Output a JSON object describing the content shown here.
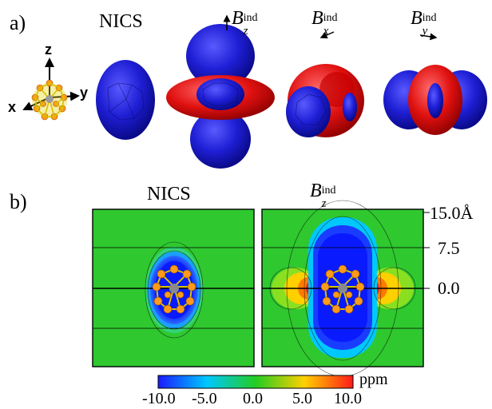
{
  "panel_a": {
    "label": "a)",
    "axes": {
      "z": "z",
      "x": "x",
      "y": "y"
    },
    "columns": [
      {
        "title": "NICS"
      },
      {
        "title_base": "B",
        "title_sub": "z",
        "title_sup": "ind",
        "arrow": "up"
      },
      {
        "title_base": "B",
        "title_sub": "x",
        "title_sup": "ind",
        "arrow": "down-left"
      },
      {
        "title_base": "B",
        "title_sub": "y",
        "title_sup": "ind",
        "arrow": "right"
      }
    ]
  },
  "panel_b": {
    "label": "b)",
    "maps": [
      {
        "title": "NICS"
      },
      {
        "title_base": "B",
        "title_sub": "z",
        "title_sup": "ind"
      }
    ],
    "distance_ticks": [
      "15.0Å",
      "7.5",
      "0.0"
    ]
  },
  "colorbar": {
    "unit": "ppm",
    "ticks": [
      "-10.0",
      "-5.0",
      "0.0",
      "5.0",
      "10.0"
    ],
    "range": [
      -10,
      10
    ],
    "colors": [
      "#1a1aff",
      "#00c8ff",
      "#22cc22",
      "#ffd000",
      "#ff1a1a"
    ]
  },
  "colors": {
    "shielding": "#1f1fd6",
    "deshielding": "#e01010",
    "background_map": "#2fc82f",
    "cage": "#ff9a1a"
  }
}
